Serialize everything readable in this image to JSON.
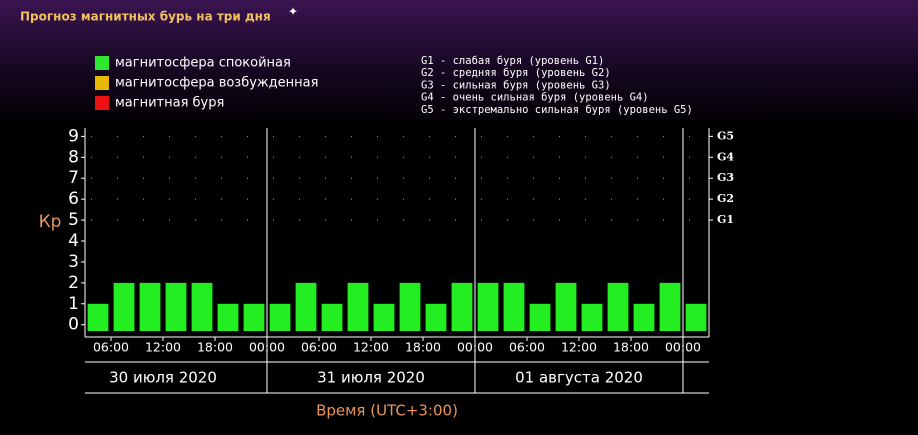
{
  "title": "Прогноз магнитных бурь на три дня",
  "chart_data": {
    "type": "bar",
    "legend": [
      {
        "label": "магнитосфера спокойная",
        "color": "#2ee82e"
      },
      {
        "label": "магнитосфера возбужденная",
        "color": "#e8b800"
      },
      {
        "label": "магнитная буря",
        "color": "#ee1111"
      }
    ],
    "g_scale": [
      "G1 - слабая буря (уровень G1)",
      "G2 - средняя буря (уровень G2)",
      "G3 - сильная буря (уровень G3)",
      "G4 - очень сильная буря (уровень G4)",
      "G5 - экстремально сильная буря (уровень G5)"
    ],
    "ylabel": "Кр",
    "xlabel": "Время (UTC+3:00)",
    "x": [
      3,
      6,
      9,
      12,
      15,
      18,
      21,
      24,
      27,
      30,
      33,
      36,
      39,
      42,
      45,
      48,
      51,
      54,
      57,
      60,
      63,
      66,
      69,
      72
    ],
    "values": [
      1,
      2,
      2,
      2,
      2,
      1,
      1,
      1,
      2,
      1,
      2,
      1,
      2,
      1,
      2,
      2,
      2,
      1,
      2,
      1,
      2,
      1,
      2,
      1
    ],
    "color": "#22ee22",
    "xlim": [
      3,
      75
    ],
    "ylim": [
      -0.3,
      9.4
    ],
    "y2lim": [
      -0.3,
      9.4
    ],
    "yticks": [
      0,
      1,
      2,
      3,
      4,
      5,
      6,
      7,
      8,
      9
    ],
    "y2ticks": [
      {
        "value": 5,
        "label": "G1"
      },
      {
        "value": 6,
        "label": "G2"
      },
      {
        "value": 7,
        "label": "G3"
      },
      {
        "value": 8,
        "label": "G4"
      },
      {
        "value": 9,
        "label": "G5"
      }
    ],
    "xticks": [
      {
        "value": 6,
        "label": "06:00"
      },
      {
        "value": 12,
        "label": "12:00"
      },
      {
        "value": 18,
        "label": "18:00"
      },
      {
        "value": 24,
        "label": "00:00"
      },
      {
        "value": 30,
        "label": "06:00"
      },
      {
        "value": 36,
        "label": "12:00"
      },
      {
        "value": 42,
        "label": "18:00"
      },
      {
        "value": 48,
        "label": "00:00"
      },
      {
        "value": 54,
        "label": "06:00"
      },
      {
        "value": 60,
        "label": "12:00"
      },
      {
        "value": 66,
        "label": "18:00"
      },
      {
        "value": 72,
        "label": "00:00"
      }
    ],
    "day_ticks": [
      {
        "value": 12,
        "label": "30 июля 2020"
      },
      {
        "value": 36,
        "label": "31 июля 2020"
      },
      {
        "value": 60,
        "label": "01 августа 2020"
      }
    ],
    "dividers": [
      24,
      48,
      72
    ],
    "grid": true
  }
}
